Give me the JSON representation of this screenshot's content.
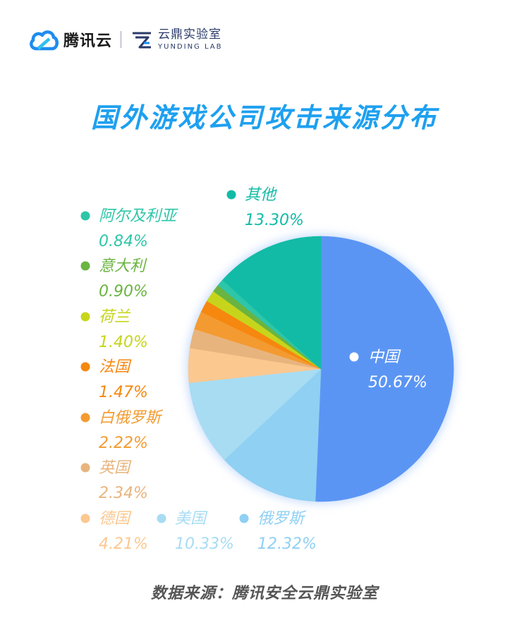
{
  "brand": {
    "tencent": "腾讯云",
    "lab_cn": "云鼎实验室",
    "lab_en": "YUNDING LAB"
  },
  "source": "数据来源：腾讯安全云鼎实验室",
  "chart_data": {
    "type": "pie",
    "title": "国外游戏公司攻击来源分布",
    "slices": [
      {
        "name": "中国",
        "value": 50.67,
        "label": "50.67%",
        "color": "#5b95f4"
      },
      {
        "name": "俄罗斯",
        "value": 12.32,
        "label": "12.32%",
        "color": "#8fd0f3"
      },
      {
        "name": "美国",
        "value": 10.33,
        "label": "10.33%",
        "color": "#a7dcf3"
      },
      {
        "name": "德国",
        "value": 4.21,
        "label": "4.21%",
        "color": "#fbc890"
      },
      {
        "name": "英国",
        "value": 2.34,
        "label": "2.34%",
        "color": "#e8b47e"
      },
      {
        "name": "白俄罗斯",
        "value": 2.22,
        "label": "2.22%",
        "color": "#f39b31"
      },
      {
        "name": "法国",
        "value": 1.47,
        "label": "1.47%",
        "color": "#f6870f"
      },
      {
        "name": "荷兰",
        "value": 1.4,
        "label": "1.40%",
        "color": "#c6d51b"
      },
      {
        "name": "意大利",
        "value": 0.9,
        "label": "0.90%",
        "color": "#6ab441"
      },
      {
        "name": "阿尔及利亚",
        "value": 0.84,
        "label": "0.84%",
        "color": "#2ec6a8"
      },
      {
        "name": "其他",
        "value": 13.3,
        "label": "13.30%",
        "color": "#12bba6"
      }
    ]
  }
}
